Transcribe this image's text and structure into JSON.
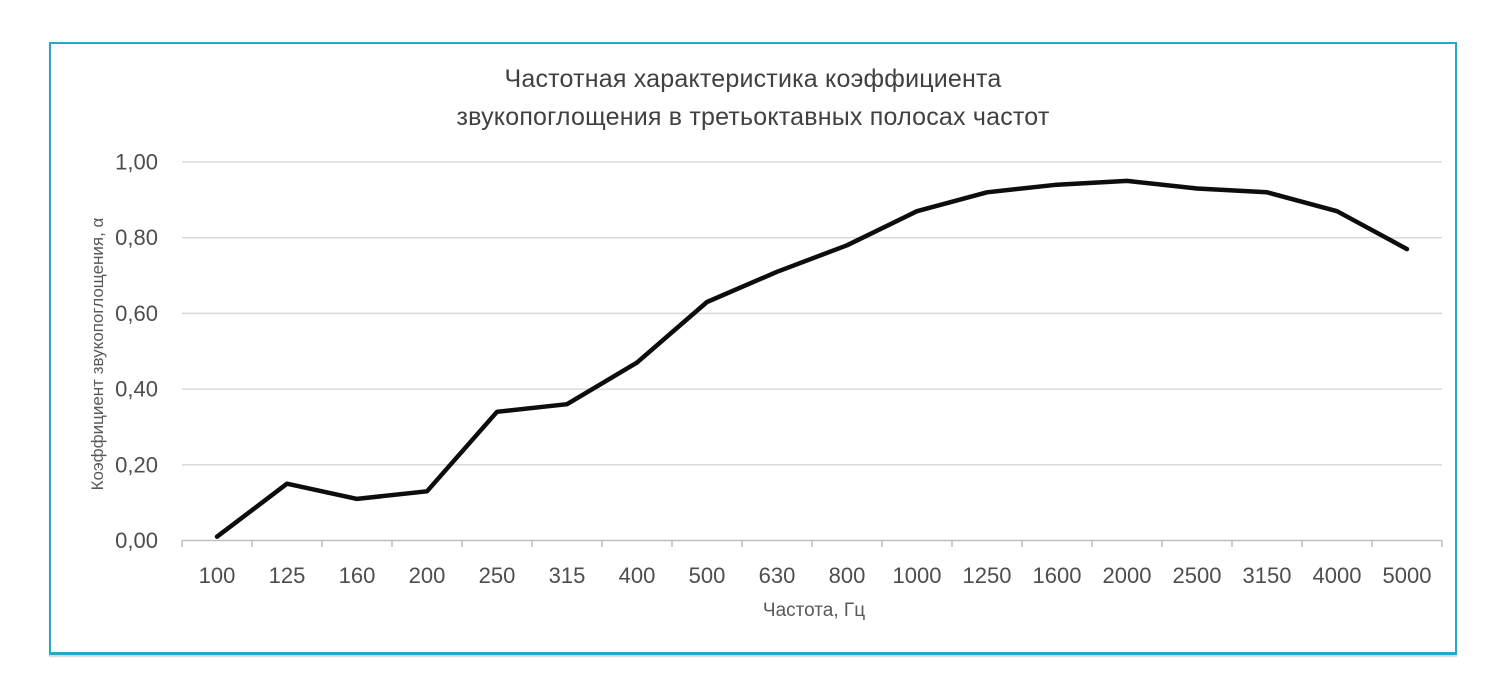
{
  "chart": {
    "title_line1": "Частотная характеристика коэффициента",
    "title_line2": "звукопоглощения в третьоктавных полосах частот",
    "ylabel": "Коэффициент звукопоглощения, α",
    "xlabel": "Частота, Гц"
  },
  "chart_data": {
    "type": "line",
    "title": "Частотная характеристика коэффициента звукопоглощения в третьоктавных полосах частот",
    "xlabel": "Частота, Гц",
    "ylabel": "Коэффициент звукопоглощения, α",
    "categories": [
      "100",
      "125",
      "160",
      "200",
      "250",
      "315",
      "400",
      "500",
      "630",
      "800",
      "1000",
      "1250",
      "1600",
      "2000",
      "2500",
      "3150",
      "4000",
      "5000"
    ],
    "values": [
      0.01,
      0.15,
      0.11,
      0.13,
      0.34,
      0.36,
      0.47,
      0.63,
      0.71,
      0.78,
      0.87,
      0.92,
      0.94,
      0.95,
      0.93,
      0.92,
      0.87,
      0.77
    ],
    "ylim": [
      0,
      1
    ],
    "yticks": [
      0,
      0.2,
      0.4,
      0.6,
      0.8,
      1.0
    ],
    "ytick_labels": [
      "0,00",
      "0,20",
      "0,40",
      "0,60",
      "0,80",
      "1,00"
    ],
    "grid": "horizontal",
    "legend": "none",
    "series_name": "Коэффициент звукопоглощения"
  },
  "colors": {
    "frame_border": "#2ba7cb",
    "series_line": "#0d0d0d",
    "gridline": "#d9d9d9",
    "axis_line": "#bfbfbf",
    "tick_mark": "#bfbfbf",
    "tick_label": "#4d4d4d",
    "title_text": "#404040",
    "axis_title_text": "#595959"
  }
}
